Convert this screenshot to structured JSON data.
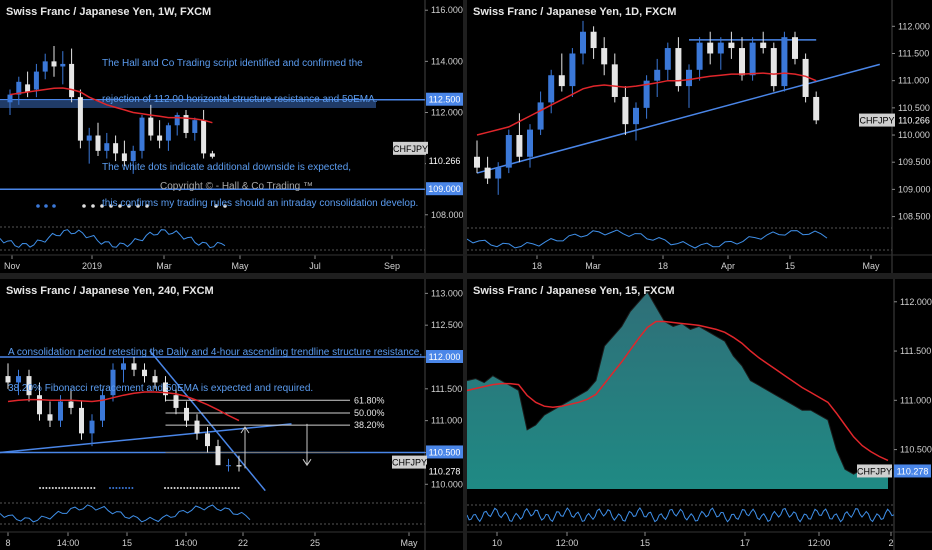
{
  "panels": [
    {
      "id": "w1",
      "title": "Swiss Franc / Japanese Yen, 1W, FXCM",
      "annotations": [
        "The Hall and Co Trading script identified and confirmed the",
        "rejection of 112.00 horizontal structure resistance and 50EMA.",
        "",
        "The white dots indicate additional downside is expected,",
        "this confirms my trading rules should an intraday consolidation develop."
      ],
      "copyright": "Copyright © - Hall & Co Trading ™",
      "yticks": [
        "116.000",
        "114.000",
        "112.000",
        "110.000",
        "108.000"
      ],
      "xticks": [
        "Nov",
        "2019",
        "Mar",
        "May",
        "Jul",
        "Sep"
      ],
      "labels": [
        {
          "text": "112.500",
          "style": "blue"
        },
        {
          "text": "CHFJPY",
          "style": "grey"
        },
        {
          "text": "110.266",
          "style": "plain"
        },
        {
          "text": "109.000",
          "style": "blue"
        }
      ]
    },
    {
      "id": "d1",
      "title": "Swiss Franc / Japanese Yen, 1D, FXCM",
      "yticks": [
        "112.000",
        "111.500",
        "111.000",
        "110.500",
        "110.000",
        "109.500",
        "109.000",
        "108.500"
      ],
      "xticks": [
        "18",
        "Mar",
        "18",
        "Apr",
        "15",
        "May"
      ],
      "labels": [
        {
          "text": "CHFJPY",
          "style": "grey"
        },
        {
          "text": "110.266",
          "style": "plain"
        }
      ]
    },
    {
      "id": "h4",
      "title": "Swiss Franc / Japanese Yen, 240, FXCM",
      "annotations": [
        "A consolidation period retesting the Daily and 4-hour ascending trendline structure resistance,",
        "38.20% Fibonacci retracement and 50EMA is expected and required."
      ],
      "fib_labels": [
        "61.80%",
        "50.00%",
        "38.20%"
      ],
      "yticks": [
        "113.000",
        "112.500",
        "112.000",
        "111.500",
        "111.000",
        "110.500",
        "110.000"
      ],
      "xticks": [
        "8",
        "14:00",
        "15",
        "14:00",
        "22",
        "25",
        "May"
      ],
      "labels": [
        {
          "text": "112.000",
          "style": "blue"
        },
        {
          "text": "110.500",
          "style": "blue"
        },
        {
          "text": "CHFJPY",
          "style": "grey"
        },
        {
          "text": "110.278",
          "style": "plain"
        }
      ]
    },
    {
      "id": "m15",
      "title": "Swiss Franc / Japanese Yen, 15, FXCM",
      "yticks": [
        "112.000",
        "111.500",
        "111.000",
        "110.500"
      ],
      "xticks": [
        "10",
        "12:00",
        "15",
        "17",
        "12:00",
        "2"
      ],
      "labels": [
        {
          "text": "CHFJPY",
          "style": "grey"
        },
        {
          "text": "110.278",
          "style": "blue"
        }
      ]
    }
  ],
  "colors": {
    "up": "#3b78d8",
    "down": "#e6e6e6",
    "ema": "#e0262b",
    "trend": "#4a86e8",
    "fib": "#cfcfcf",
    "area_top": "#2f6f78",
    "area_bottom": "#1f8a84",
    "osc": "#3f8fe8"
  },
  "chart_data": [
    {
      "type": "candlestick",
      "title": "Swiss Franc / Japanese Yen, 1W, FXCM",
      "ylim": [
        107.6,
        116.4
      ],
      "x_ticks": [
        "Nov",
        "2019",
        "Mar",
        "May",
        "Jul",
        "Sep"
      ],
      "ohlc": [
        [
          112.4,
          112.9,
          111.9,
          112.7
        ],
        [
          112.7,
          113.4,
          112.3,
          113.2
        ],
        [
          113.1,
          113.6,
          112.6,
          112.8
        ],
        [
          112.9,
          113.9,
          112.6,
          113.6
        ],
        [
          113.6,
          114.3,
          113.3,
          114.0
        ],
        [
          114.0,
          114.6,
          113.4,
          113.8
        ],
        [
          113.8,
          114.4,
          113.1,
          113.9
        ],
        [
          113.9,
          114.5,
          112.4,
          112.6
        ],
        [
          112.6,
          112.9,
          110.6,
          110.9
        ],
        [
          110.9,
          111.4,
          110.0,
          111.1
        ],
        [
          111.1,
          111.6,
          110.3,
          110.5
        ],
        [
          110.5,
          111.2,
          110.2,
          110.8
        ],
        [
          110.8,
          111.1,
          110.1,
          110.4
        ],
        [
          110.4,
          110.9,
          109.9,
          110.1
        ],
        [
          110.1,
          110.7,
          109.6,
          110.5
        ],
        [
          110.5,
          111.9,
          110.2,
          111.8
        ],
        [
          111.8,
          112.3,
          110.9,
          111.1
        ],
        [
          111.1,
          111.7,
          110.6,
          110.9
        ],
        [
          110.9,
          111.6,
          110.5,
          111.5
        ],
        [
          111.5,
          112.0,
          111.1,
          111.9
        ],
        [
          111.9,
          112.1,
          111.0,
          111.2
        ],
        [
          111.2,
          111.8,
          110.9,
          111.7
        ],
        [
          111.7,
          112.1,
          110.2,
          110.4
        ],
        [
          110.4,
          110.5,
          110.2,
          110.27
        ]
      ],
      "ema50": [
        112.7,
        112.75,
        112.8,
        112.85,
        112.9,
        112.95,
        112.96,
        112.9,
        112.8,
        112.6,
        112.45,
        112.3,
        112.2,
        112.1,
        112.0,
        111.95,
        111.9,
        111.85,
        111.8,
        111.8,
        111.78,
        111.75,
        111.7,
        111.6
      ],
      "horizontal_levels": [
        112.5,
        112.35,
        109.0
      ],
      "last_price": 110.266
    },
    {
      "type": "candlestick",
      "title": "Swiss Franc / Japanese Yen, 1D, FXCM",
      "ylim": [
        108.4,
        112.3
      ],
      "x_ticks": [
        "18",
        "Mar",
        "18",
        "Apr",
        "15",
        "May"
      ],
      "ohlc": [
        [
          109.6,
          109.9,
          109.3,
          109.4
        ],
        [
          109.4,
          109.6,
          109.1,
          109.2
        ],
        [
          109.2,
          109.5,
          108.9,
          109.4
        ],
        [
          109.4,
          110.1,
          109.3,
          110.0
        ],
        [
          110.0,
          110.4,
          109.5,
          109.6
        ],
        [
          109.6,
          110.2,
          109.4,
          110.1
        ],
        [
          110.1,
          110.8,
          110.0,
          110.6
        ],
        [
          110.6,
          111.2,
          110.4,
          111.1
        ],
        [
          111.1,
          111.5,
          110.8,
          110.9
        ],
        [
          110.9,
          111.6,
          110.7,
          111.5
        ],
        [
          111.5,
          112.1,
          111.3,
          111.9
        ],
        [
          111.9,
          112.0,
          111.4,
          111.6
        ],
        [
          111.6,
          111.8,
          111.1,
          111.3
        ],
        [
          111.3,
          111.5,
          110.6,
          110.7
        ],
        [
          110.7,
          110.9,
          110.0,
          110.2
        ],
        [
          110.2,
          110.6,
          109.9,
          110.5
        ],
        [
          110.5,
          111.1,
          110.3,
          111.0
        ],
        [
          111.0,
          111.4,
          110.7,
          111.2
        ],
        [
          111.2,
          111.7,
          111.0,
          111.6
        ],
        [
          111.6,
          111.8,
          110.8,
          110.9
        ],
        [
          110.9,
          111.3,
          110.5,
          111.2
        ],
        [
          111.2,
          111.8,
          111.0,
          111.7
        ],
        [
          111.7,
          111.9,
          111.3,
          111.5
        ],
        [
          111.5,
          111.8,
          111.2,
          111.7
        ],
        [
          111.7,
          111.9,
          111.4,
          111.6
        ],
        [
          111.6,
          111.8,
          111.0,
          111.1
        ],
        [
          111.1,
          111.8,
          111.0,
          111.7
        ],
        [
          111.7,
          111.9,
          111.5,
          111.6
        ],
        [
          111.6,
          111.7,
          110.8,
          110.9
        ],
        [
          110.9,
          111.9,
          110.8,
          111.8
        ],
        [
          111.8,
          111.9,
          111.3,
          111.4
        ],
        [
          111.4,
          111.5,
          110.6,
          110.7
        ],
        [
          110.7,
          110.8,
          110.2,
          110.27
        ]
      ],
      "ema50": [
        110.0,
        110.05,
        110.1,
        110.15,
        110.25,
        110.35,
        110.45,
        110.55,
        110.65,
        110.75,
        110.85,
        110.9,
        110.92,
        110.9,
        110.88,
        110.9,
        110.93,
        110.96,
        111.0,
        111.0,
        111.02,
        111.05,
        111.08,
        111.1,
        111.12,
        111.12,
        111.13,
        111.14,
        111.12,
        111.14,
        111.12,
        111.08,
        111.0
      ],
      "trendlines": [
        {
          "from": [
            0,
            109.3
          ],
          "to": [
            38,
            111.3
          ]
        },
        {
          "from": [
            20,
            111.75
          ],
          "to": [
            32,
            111.75
          ]
        }
      ],
      "last_price": 110.266
    },
    {
      "type": "candlestick",
      "title": "Swiss Franc / Japanese Yen, 240, FXCM",
      "ylim": [
        109.8,
        113.1
      ],
      "x_ticks": [
        "8",
        "14:00",
        "15",
        "14:00",
        "22",
        "25",
        "May"
      ],
      "ohlc": [
        [
          111.7,
          111.9,
          111.5,
          111.6
        ],
        [
          111.6,
          111.8,
          111.4,
          111.7
        ],
        [
          111.7,
          111.8,
          111.3,
          111.4
        ],
        [
          111.4,
          111.6,
          111.0,
          111.1
        ],
        [
          111.1,
          111.3,
          110.9,
          111.0
        ],
        [
          111.0,
          111.4,
          110.9,
          111.3
        ],
        [
          111.3,
          111.5,
          111.1,
          111.2
        ],
        [
          111.2,
          111.3,
          110.7,
          110.8
        ],
        [
          110.8,
          111.1,
          110.6,
          111.0
        ],
        [
          111.0,
          111.5,
          110.9,
          111.4
        ],
        [
          111.4,
          111.9,
          111.3,
          111.8
        ],
        [
          111.8,
          112.0,
          111.6,
          111.9
        ],
        [
          111.9,
          112.0,
          111.7,
          111.8
        ],
        [
          111.8,
          111.9,
          111.6,
          111.7
        ],
        [
          111.7,
          111.8,
          111.5,
          111.6
        ],
        [
          111.6,
          111.7,
          111.3,
          111.4
        ],
        [
          111.4,
          111.5,
          111.1,
          111.2
        ],
        [
          111.2,
          111.3,
          110.9,
          111.0
        ],
        [
          111.0,
          111.1,
          110.7,
          110.8
        ],
        [
          110.8,
          110.9,
          110.5,
          110.6
        ],
        [
          110.6,
          110.7,
          110.3,
          110.3
        ],
        [
          110.3,
          110.4,
          110.2,
          110.3
        ],
        [
          110.3,
          110.45,
          110.2,
          110.28
        ]
      ],
      "ema50": [
        111.3,
        111.32,
        111.33,
        111.33,
        111.32,
        111.32,
        111.32,
        111.31,
        111.3,
        111.32,
        111.36,
        111.4,
        111.43,
        111.45,
        111.45,
        111.44,
        111.42,
        111.38,
        111.32,
        111.25,
        111.17,
        111.08,
        111.0
      ],
      "fibonacci": [
        {
          "label": "61.80%",
          "y": 111.32
        },
        {
          "label": "50.00%",
          "y": 111.12
        },
        {
          "label": "38.20%",
          "y": 110.93
        }
      ],
      "horizontal_levels": [
        112.0,
        110.5
      ],
      "last_price": 110.278
    },
    {
      "type": "area",
      "title": "Swiss Franc / Japanese Yen, 15, FXCM",
      "ylim": [
        110.1,
        112.15
      ],
      "x_ticks": [
        "10",
        "12:00",
        "15",
        "17",
        "12:00",
        "2"
      ],
      "values": [
        111.2,
        111.22,
        111.18,
        111.25,
        111.2,
        111.15,
        111.1,
        110.7,
        110.75,
        110.85,
        110.9,
        110.95,
        111.0,
        111.05,
        111.1,
        111.2,
        111.55,
        111.65,
        111.75,
        111.9,
        112.0,
        112.1,
        111.95,
        111.8,
        111.75,
        111.78,
        111.72,
        111.75,
        111.7,
        111.65,
        111.6,
        111.45,
        111.35,
        111.2,
        111.15,
        111.1,
        111.05,
        111.0,
        110.95,
        110.9,
        110.9,
        110.85,
        110.8,
        110.5,
        110.3,
        110.25,
        110.3,
        110.35,
        110.32,
        110.3
      ],
      "ema": [
        111.1,
        111.12,
        111.14,
        111.16,
        111.17,
        111.17,
        111.16,
        111.05,
        110.98,
        110.94,
        110.93,
        110.94,
        110.96,
        110.98,
        111.01,
        111.06,
        111.17,
        111.28,
        111.39,
        111.51,
        111.63,
        111.74,
        111.8,
        111.8,
        111.79,
        111.78,
        111.77,
        111.76,
        111.74,
        111.72,
        111.69,
        111.64,
        111.58,
        111.5,
        111.43,
        111.37,
        111.31,
        111.25,
        111.19,
        111.13,
        111.08,
        111.03,
        110.98,
        110.87,
        110.75,
        110.63,
        110.54,
        110.48,
        110.43,
        110.39
      ],
      "last_price": 110.278
    }
  ]
}
